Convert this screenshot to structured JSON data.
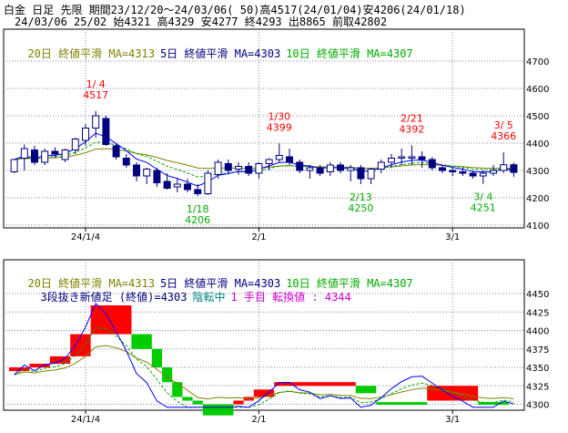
{
  "header": {
    "line1": "白金 日足 先限 期間23/12/20～24/03/06( 50)高4517(24/01/04)安4206(24/01/18)",
    "line2": "24/03/06 25/02 始4321 高4329 安4277 終4293 出8865 前取42802"
  },
  "upper": {
    "ma_labels": [
      {
        "text": "20日 終値平滑 MA=4313",
        "color": "#808000"
      },
      {
        "text": "5日 終値平滑 MA=4303",
        "color": "#000080"
      },
      {
        "text": "10日 終値平滑 MA=4307",
        "color": "#00aa00"
      }
    ]
  },
  "lower": {
    "ma_labels": [
      {
        "text": "20日 終値平滑 MA=4313",
        "color": "#808000"
      },
      {
        "text": "5日 終値平滑 MA=4303",
        "color": "#000080"
      },
      {
        "text": "10日 終値平滑 MA=4307",
        "color": "#00aa00"
      }
    ],
    "status_text": "3段抜き新値足 (終値)=4303",
    "status_mid": "陰転中",
    "status_right": "1 手目 転換値 : 4344"
  },
  "colors": {
    "up_candle": "#ffffff",
    "down_candle": "#000080",
    "ma5": "#0000ff",
    "ma10": "#00aa00",
    "ma20": "#808000",
    "high_label": "#ff0000",
    "low_label": "#00aa00",
    "up_block": "#ff0000",
    "down_block": "#00cc00"
  },
  "chart_data": [
    {
      "type": "candlestick",
      "title": "白金 日足 先限",
      "x_tick_labels": [
        "24/1/4",
        "2/1",
        "3/1"
      ],
      "y_ticks": [
        4100,
        4200,
        4300,
        4400,
        4500,
        4600,
        4700
      ],
      "ylim": [
        4090,
        4750
      ],
      "grid": true,
      "candles": [
        {
          "o": 4295,
          "h": 4340,
          "l": 4290,
          "c": 4340
        },
        {
          "o": 4345,
          "h": 4395,
          "l": 4300,
          "c": 4380
        },
        {
          "o": 4375,
          "h": 4390,
          "l": 4320,
          "c": 4330
        },
        {
          "o": 4330,
          "h": 4380,
          "l": 4320,
          "c": 4370
        },
        {
          "o": 4370,
          "h": 4385,
          "l": 4345,
          "c": 4360
        },
        {
          "o": 4340,
          "h": 4380,
          "l": 4330,
          "c": 4375
        },
        {
          "o": 4375,
          "h": 4420,
          "l": 4360,
          "c": 4415
        },
        {
          "o": 4410,
          "h": 4470,
          "l": 4390,
          "c": 4455
        },
        {
          "o": 4455,
          "h": 4517,
          "l": 4420,
          "c": 4500
        },
        {
          "o": 4490,
          "h": 4500,
          "l": 4390,
          "c": 4395
        },
        {
          "o": 4390,
          "h": 4400,
          "l": 4340,
          "c": 4350
        },
        {
          "o": 4345,
          "h": 4360,
          "l": 4310,
          "c": 4320
        },
        {
          "o": 4320,
          "h": 4330,
          "l": 4260,
          "c": 4280
        },
        {
          "o": 4280,
          "h": 4310,
          "l": 4250,
          "c": 4305
        },
        {
          "o": 4300,
          "h": 4310,
          "l": 4240,
          "c": 4255
        },
        {
          "o": 4260,
          "h": 4290,
          "l": 4230,
          "c": 4235
        },
        {
          "o": 4240,
          "h": 4270,
          "l": 4220,
          "c": 4250
        },
        {
          "o": 4250,
          "h": 4270,
          "l": 4220,
          "c": 4230
        },
        {
          "o": 4230,
          "h": 4250,
          "l": 4206,
          "c": 4215
        },
        {
          "o": 4215,
          "h": 4300,
          "l": 4210,
          "c": 4290
        },
        {
          "o": 4285,
          "h": 4340,
          "l": 4270,
          "c": 4330
        },
        {
          "o": 4325,
          "h": 4340,
          "l": 4290,
          "c": 4300
        },
        {
          "o": 4305,
          "h": 4330,
          "l": 4285,
          "c": 4315
        },
        {
          "o": 4315,
          "h": 4330,
          "l": 4280,
          "c": 4290
        },
        {
          "o": 4290,
          "h": 4330,
          "l": 4270,
          "c": 4325
        },
        {
          "o": 4325,
          "h": 4345,
          "l": 4300,
          "c": 4340
        },
        {
          "o": 4340,
          "h": 4399,
          "l": 4330,
          "c": 4355
        },
        {
          "o": 4350,
          "h": 4380,
          "l": 4320,
          "c": 4330
        },
        {
          "o": 4330,
          "h": 4340,
          "l": 4290,
          "c": 4300
        },
        {
          "o": 4300,
          "h": 4320,
          "l": 4270,
          "c": 4310
        },
        {
          "o": 4310,
          "h": 4320,
          "l": 4280,
          "c": 4290
        },
        {
          "o": 4295,
          "h": 4330,
          "l": 4280,
          "c": 4320
        },
        {
          "o": 4320,
          "h": 4330,
          "l": 4290,
          "c": 4300
        },
        {
          "o": 4300,
          "h": 4320,
          "l": 4260,
          "c": 4310
        },
        {
          "o": 4310,
          "h": 4320,
          "l": 4250,
          "c": 4270
        },
        {
          "o": 4270,
          "h": 4310,
          "l": 4250,
          "c": 4305
        },
        {
          "o": 4305,
          "h": 4340,
          "l": 4290,
          "c": 4330
        },
        {
          "o": 4330,
          "h": 4360,
          "l": 4310,
          "c": 4345
        },
        {
          "o": 4345,
          "h": 4380,
          "l": 4320,
          "c": 4350
        },
        {
          "o": 4345,
          "h": 4392,
          "l": 4320,
          "c": 4350
        },
        {
          "o": 4350,
          "h": 4370,
          "l": 4310,
          "c": 4340
        },
        {
          "o": 4340,
          "h": 4350,
          "l": 4300,
          "c": 4310
        },
        {
          "o": 4310,
          "h": 4320,
          "l": 4290,
          "c": 4300
        },
        {
          "o": 4300,
          "h": 4310,
          "l": 4280,
          "c": 4295
        },
        {
          "o": 4295,
          "h": 4310,
          "l": 4280,
          "c": 4290
        },
        {
          "o": 4290,
          "h": 4300,
          "l": 4270,
          "c": 4280
        },
        {
          "o": 4280,
          "h": 4300,
          "l": 4251,
          "c": 4290
        },
        {
          "o": 4290,
          "h": 4320,
          "l": 4280,
          "c": 4300
        },
        {
          "o": 4300,
          "h": 4366,
          "l": 4290,
          "c": 4321
        },
        {
          "o": 4321,
          "h": 4329,
          "l": 4277,
          "c": 4293
        }
      ],
      "annotations": [
        {
          "date": "1/ 4",
          "value": "4517",
          "kind": "high",
          "index": 8
        },
        {
          "date": "1/18",
          "value": "4206",
          "kind": "low",
          "index": 18
        },
        {
          "date": "1/30",
          "value": "4399",
          "kind": "high",
          "index": 26
        },
        {
          "date": "2/13",
          "value": "4250",
          "kind": "low",
          "index": 34
        },
        {
          "date": "2/21",
          "value": "4392",
          "kind": "high",
          "index": 39
        },
        {
          "date": "3/ 4",
          "value": "4251",
          "kind": "low",
          "index": 46
        },
        {
          "date": "3/ 5",
          "value": "4366",
          "kind": "high",
          "index": 48
        }
      ]
    },
    {
      "type": "new-price-blocks",
      "title": "3段抜き新値足",
      "x_tick_labels": [
        "24/1/4",
        "2/1",
        "3/1"
      ],
      "y_ticks": [
        4300,
        4325,
        4350,
        4375,
        4400,
        4425,
        4450
      ],
      "ylim": [
        4292,
        4455
      ],
      "grid": true,
      "blocks": [
        {
          "start": 0,
          "end": 2,
          "from": 4345,
          "to": 4350,
          "dir": "up"
        },
        {
          "start": 2,
          "end": 4,
          "from": 4350,
          "to": 4355,
          "dir": "up"
        },
        {
          "start": 4,
          "end": 6,
          "from": 4355,
          "to": 4365,
          "dir": "up"
        },
        {
          "start": 6,
          "end": 8,
          "from": 4365,
          "to": 4395,
          "dir": "up"
        },
        {
          "start": 8,
          "end": 12,
          "from": 4395,
          "to": 4434,
          "dir": "up"
        },
        {
          "start": 12,
          "end": 14,
          "from": 4395,
          "to": 4375,
          "dir": "down"
        },
        {
          "start": 14,
          "end": 15,
          "from": 4375,
          "to": 4350,
          "dir": "down"
        },
        {
          "start": 15,
          "end": 16,
          "from": 4350,
          "to": 4330,
          "dir": "down"
        },
        {
          "start": 16,
          "end": 17,
          "from": 4330,
          "to": 4310,
          "dir": "down"
        },
        {
          "start": 17,
          "end": 18,
          "from": 4310,
          "to": 4305,
          "dir": "down"
        },
        {
          "start": 18,
          "end": 19,
          "from": 4305,
          "to": 4300,
          "dir": "down"
        },
        {
          "start": 19,
          "end": 22,
          "from": 4300,
          "to": 4285,
          "dir": "down"
        },
        {
          "start": 22,
          "end": 23,
          "from": 4300,
          "to": 4305,
          "dir": "up"
        },
        {
          "start": 23,
          "end": 24,
          "from": 4305,
          "to": 4310,
          "dir": "up"
        },
        {
          "start": 24,
          "end": 26,
          "from": 4310,
          "to": 4320,
          "dir": "up"
        },
        {
          "start": 26,
          "end": 34,
          "from": 4325,
          "to": 4330,
          "dir": "up"
        },
        {
          "start": 34,
          "end": 36,
          "from": 4325,
          "to": 4315,
          "dir": "down"
        },
        {
          "start": 36,
          "end": 41,
          "from": 4300,
          "to": 4303,
          "dir": "down"
        },
        {
          "start": 41,
          "end": 46,
          "from": 4305,
          "to": 4325,
          "dir": "up"
        },
        {
          "start": 46,
          "end": 49,
          "from": 4300,
          "to": 4303,
          "dir": "down"
        }
      ]
    }
  ]
}
